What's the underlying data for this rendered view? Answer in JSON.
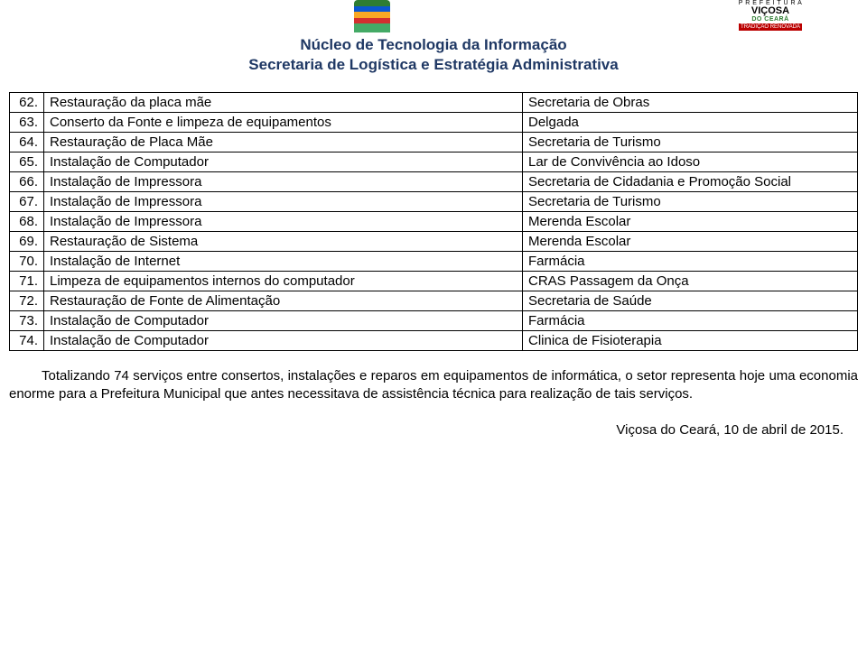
{
  "header": {
    "title_line1": "Núcleo de Tecnologia da Informação",
    "title_line2": "Secretaria de Logística e Estratégia Administrativa"
  },
  "table": {
    "rows": [
      {
        "n": "62.",
        "desc": "Restauração da placa mãe",
        "loc": "Secretaria de Obras"
      },
      {
        "n": "63.",
        "desc": "Conserto da Fonte e limpeza de equipamentos",
        "loc": "Delgada"
      },
      {
        "n": "64.",
        "desc": "Restauração de Placa Mãe",
        "loc": "Secretaria de Turismo"
      },
      {
        "n": "65.",
        "desc": "Instalação de Computador",
        "loc": "Lar de Convivência ao Idoso"
      },
      {
        "n": "66.",
        "desc": "Instalação de Impressora",
        "loc": "Secretaria de Cidadania e Promoção Social"
      },
      {
        "n": "67.",
        "desc": "Instalação de Impressora",
        "loc": "Secretaria de Turismo"
      },
      {
        "n": "68.",
        "desc": "Instalação de Impressora",
        "loc": "Merenda Escolar"
      },
      {
        "n": "69.",
        "desc": "Restauração de Sistema",
        "loc": "Merenda Escolar"
      },
      {
        "n": "70.",
        "desc": "Instalação de Internet",
        "loc": "Farmácia"
      },
      {
        "n": "71.",
        "desc": "Limpeza de equipamentos internos do computador",
        "loc": "CRAS Passagem da Onça"
      },
      {
        "n": "72.",
        "desc": "Restauração de Fonte de Alimentação",
        "loc": "Secretaria de Saúde"
      },
      {
        "n": "73.",
        "desc": "Instalação de Computador",
        "loc": "Farmácia"
      },
      {
        "n": "74.",
        "desc": "Instalação de Computador",
        "loc": "Clinica de Fisioterapia"
      }
    ]
  },
  "paragraph": "Totalizando 74 serviços entre consertos, instalações  e reparos em equipamentos de informática, o setor representa hoje uma economia enorme para a Prefeitura Municipal que antes necessitava de assistência técnica para realização de tais serviços.",
  "date": "Viçosa do Ceará, 10 de abril de 2015.",
  "logos": {
    "state_colors": [
      "#2e7d32",
      "#0b57d0",
      "#f9a825",
      "#d32f2f"
    ],
    "city_name": "VIÇOSA",
    "city_sub": "DO CEARÁ",
    "city_ribbon": "TRADIÇÃO RENOVADA",
    "city_pref": "P R E F E I T U R A"
  },
  "colors": {
    "title_color": "#1f3864",
    "text_color": "#000000",
    "border_color": "#000000",
    "background": "#ffffff"
  },
  "typography": {
    "title_fontsize_pt": 13,
    "body_fontsize_pt": 11,
    "font_family": "Arial"
  }
}
